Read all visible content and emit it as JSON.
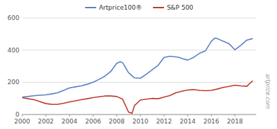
{
  "chart_data": {
    "type": "line",
    "series": [
      {
        "name": "Artprice100®",
        "color": "#5b7fc4",
        "x": [
          2000,
          2000.5,
          2001,
          2001.5,
          2002,
          2002.5,
          2003,
          2003.5,
          2004,
          2004.5,
          2005,
          2005.5,
          2006,
          2006.5,
          2007,
          2007.5,
          2008,
          2008.3,
          2008.5,
          2009,
          2009.5,
          2010,
          2010.5,
          2011,
          2011.5,
          2012,
          2012.5,
          2013,
          2013.3,
          2013.5,
          2014,
          2014.5,
          2015,
          2015.5,
          2016,
          2016.3,
          2016.5,
          2017,
          2017.5,
          2018,
          2018.5,
          2019,
          2019.5
        ],
        "values": [
          108,
          112,
          117,
          120,
          122,
          128,
          135,
          150,
          165,
          172,
          178,
          188,
          200,
          218,
          238,
          268,
          318,
          328,
          322,
          260,
          228,
          225,
          250,
          278,
          305,
          355,
          362,
          358,
          355,
          348,
          338,
          355,
          380,
          395,
          455,
          475,
          472,
          455,
          440,
          402,
          430,
          462,
          472
        ]
      },
      {
        "name": "S&P 500",
        "color": "#c0392b",
        "x": [
          2000,
          2000.5,
          2001,
          2001.5,
          2002,
          2002.5,
          2003,
          2003.5,
          2004,
          2004.5,
          2005,
          2005.5,
          2006,
          2006.5,
          2007,
          2007.5,
          2008,
          2008.5,
          2009,
          2009.3,
          2009.5,
          2010,
          2010.5,
          2011,
          2011.5,
          2012,
          2012.5,
          2013,
          2013.5,
          2014,
          2014.5,
          2015,
          2015.5,
          2016,
          2016.5,
          2017,
          2017.5,
          2018,
          2018.5,
          2019,
          2019.5
        ],
        "values": [
          105,
          98,
          92,
          80,
          68,
          63,
          63,
          70,
          78,
          85,
          92,
          98,
          105,
          110,
          115,
          115,
          112,
          95,
          15,
          8,
          55,
          90,
          95,
          100,
          98,
          108,
          118,
          135,
          145,
          152,
          155,
          150,
          148,
          150,
          158,
          168,
          175,
          182,
          178,
          175,
          210
        ]
      }
    ],
    "xlim": [
      2000,
      2019.8
    ],
    "xticks": [
      2000,
      2002,
      2004,
      2006,
      2008,
      2010,
      2012,
      2014,
      2016,
      2018
    ],
    "ylim": [
      0,
      600
    ],
    "yticks": [
      0,
      200,
      400,
      600
    ],
    "grid": true,
    "legend": "top",
    "annotations": [
      "artprice.com"
    ]
  }
}
